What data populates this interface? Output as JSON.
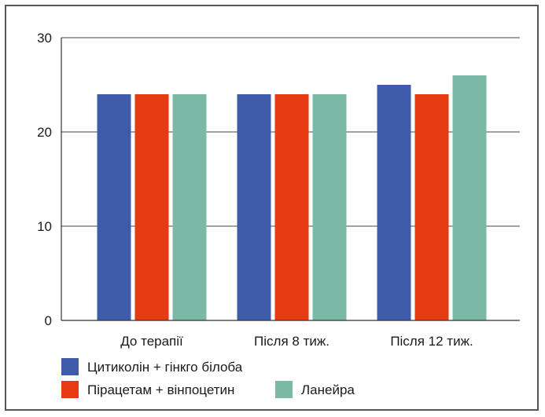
{
  "chart_data": {
    "type": "bar",
    "categories": [
      "До терапії",
      "Після 8 тиж.",
      "Після 12 тиж."
    ],
    "series": [
      {
        "name": "Цитиколін + гінкго білоба",
        "color": "#3e5caa",
        "values": [
          24,
          24,
          25
        ]
      },
      {
        "name": "Пірацетам + вінпоцетин",
        "color": "#e63a12",
        "values": [
          24,
          24,
          24
        ]
      },
      {
        "name": "Ланейра",
        "color": "#7cb8a6",
        "values": [
          24,
          24,
          26
        ]
      }
    ],
    "ylim": [
      0,
      30
    ],
    "yticks": [
      0,
      10,
      20,
      30
    ],
    "grid": true,
    "legend_placement": "bottom-left",
    "title": "",
    "xlabel": "",
    "ylabel": ""
  }
}
